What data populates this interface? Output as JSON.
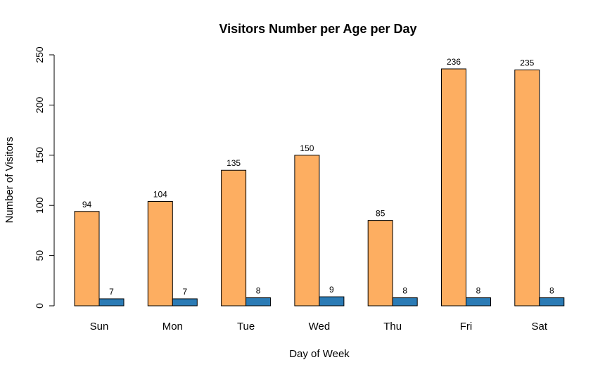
{
  "chart_data": {
    "type": "bar",
    "title": "Visitors Number per Age per Day",
    "xlabel": "Day of Week",
    "ylabel": "Number of Visitors",
    "categories": [
      "Sun",
      "Mon",
      "Tue",
      "Wed",
      "Thu",
      "Fri",
      "Sat"
    ],
    "series": [
      {
        "name": "series-1",
        "color": "#FDAE61",
        "values": [
          94,
          104,
          135,
          150,
          85,
          236,
          235
        ]
      },
      {
        "name": "series-2",
        "color": "#2B7BB5",
        "values": [
          7,
          7,
          8,
          9,
          8,
          8,
          8
        ]
      }
    ],
    "ylim": [
      0,
      250
    ],
    "yticks": [
      0,
      50,
      100,
      150,
      200,
      250
    ],
    "grid": false,
    "legend": "none"
  }
}
